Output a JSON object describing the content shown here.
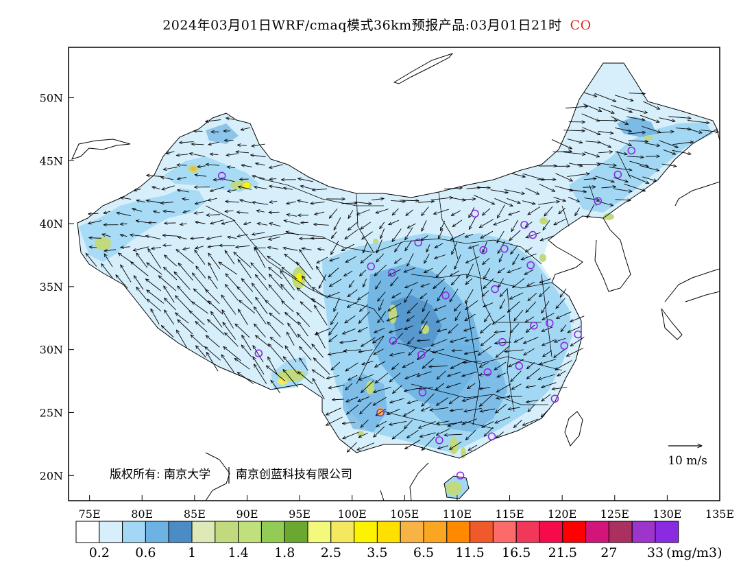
{
  "header": {
    "title": "2024年03月01日WRF/cmaq模式36km预报产品:03月01日21时",
    "species": "CO",
    "species_color": "#e8261c"
  },
  "map": {
    "lon_range": [
      73,
      135
    ],
    "lat_range": [
      18,
      54
    ],
    "lon_ticks": [
      75,
      80,
      85,
      90,
      95,
      100,
      105,
      110,
      115,
      120,
      125,
      130,
      135
    ],
    "lat_ticks": [
      20,
      25,
      30,
      35,
      40,
      45,
      50
    ],
    "lon_tick_labels": [
      "75E",
      "80E",
      "85E",
      "90E",
      "95E",
      "100E",
      "105E",
      "110E",
      "115E",
      "120E",
      "125E",
      "130E",
      "135E"
    ],
    "lat_tick_labels": [
      "20N",
      "25N",
      "30N",
      "35N",
      "40N",
      "45N",
      "50N"
    ],
    "wind_reference": "10 m/s",
    "copyright": "版权所有: 南京大学",
    "copyright_company": "南京创蓝科技有限公司",
    "station_color": "#8b2be2",
    "stations": [
      [
        87.6,
        43.8
      ],
      [
        91.1,
        29.7
      ],
      [
        101.8,
        36.6
      ],
      [
        103.8,
        36.1
      ],
      [
        106.3,
        38.5
      ],
      [
        103.9,
        30.7
      ],
      [
        106.6,
        29.6
      ],
      [
        106.7,
        26.6
      ],
      [
        102.7,
        25.0
      ],
      [
        108.3,
        22.8
      ],
      [
        110.3,
        20.0
      ],
      [
        113.3,
        23.1
      ],
      [
        112.9,
        28.2
      ],
      [
        114.3,
        30.6
      ],
      [
        115.9,
        28.7
      ],
      [
        117.3,
        31.9
      ],
      [
        118.8,
        32.1
      ],
      [
        120.2,
        30.3
      ],
      [
        121.5,
        31.2
      ],
      [
        119.3,
        26.1
      ],
      [
        113.6,
        34.8
      ],
      [
        108.9,
        34.3
      ],
      [
        112.5,
        37.9
      ],
      [
        114.5,
        38.0
      ],
      [
        116.4,
        39.9
      ],
      [
        117.2,
        39.1
      ],
      [
        117.0,
        36.7
      ],
      [
        111.7,
        40.8
      ],
      [
        123.4,
        41.8
      ],
      [
        125.3,
        43.9
      ],
      [
        126.6,
        45.8
      ]
    ]
  },
  "legend": {
    "unit": "(mg/m3)",
    "colors": [
      "#ffffff",
      "#d6effb",
      "#a3d8f4",
      "#6cb2e2",
      "#4b8cc4",
      "#dde9b6",
      "#c0da7d",
      "#bfe07c",
      "#93cc55",
      "#6ba82f",
      "#f3f97a",
      "#f4e860",
      "#fdf200",
      "#ffe000",
      "#f7b444",
      "#faa620",
      "#ff8a00",
      "#f05a2a",
      "#fd6a6a",
      "#f2385a",
      "#f50a4a",
      "#ff0000",
      "#d3157a",
      "#ab3060",
      "#9d34cc",
      "#8a2be2"
    ],
    "labels": [
      "0.2",
      "0.6",
      "1",
      "1.4",
      "1.8",
      "2.5",
      "3.5",
      "6.5",
      "11.5",
      "16.5",
      "21.5",
      "27",
      "33"
    ]
  }
}
